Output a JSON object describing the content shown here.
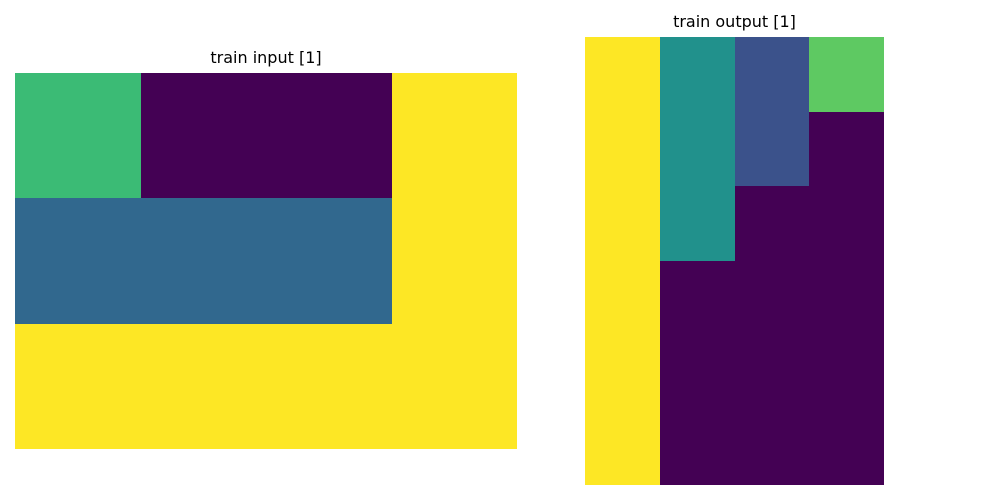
{
  "panels": {
    "input": {
      "title": "train input [1]",
      "rows": 3,
      "cols": 4,
      "grid": [
        [
          3,
          0,
          0,
          4
        ],
        [
          2,
          2,
          2,
          4
        ],
        [
          4,
          4,
          4,
          4
        ]
      ]
    },
    "output": {
      "title": "train output [1]",
      "rows": 6,
      "cols": 4,
      "grid": [
        [
          4,
          2.5,
          1.5,
          3
        ],
        [
          4,
          2.5,
          1.5,
          0
        ],
        [
          4,
          2.5,
          0,
          0
        ],
        [
          4,
          0,
          0,
          0
        ],
        [
          4,
          0,
          0,
          0
        ],
        [
          4,
          0,
          0,
          0
        ]
      ]
    }
  },
  "palette": {
    "0": "#440154",
    "1.5": "#3b528b",
    "2": "#31688e",
    "2.5": "#21918c",
    "3": "#3bbb75",
    "3.5": "#5ec962",
    "4": "#fde725"
  },
  "output_palette_override": {
    "3": "#5ec962"
  }
}
